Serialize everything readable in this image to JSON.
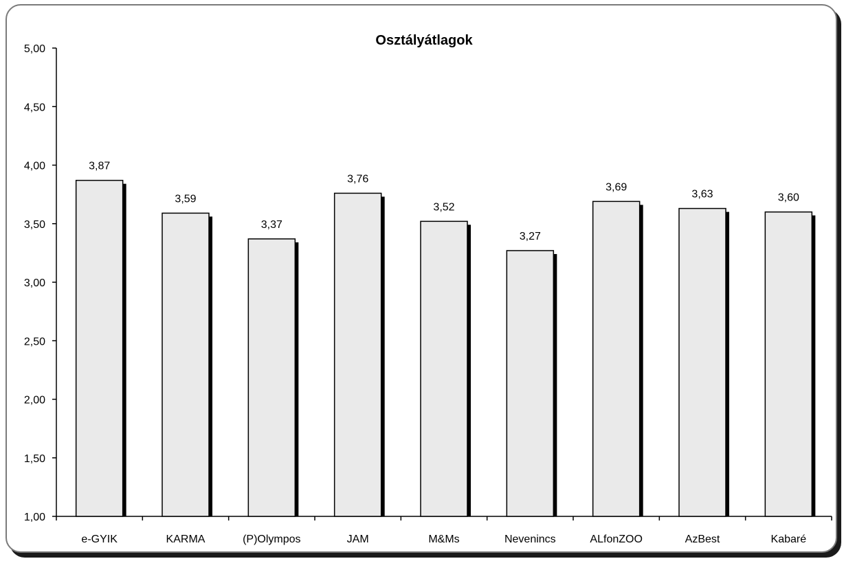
{
  "chart_data": {
    "type": "bar",
    "title": "Osztályátlagok",
    "categories": [
      "e-GYIK",
      "KARMA",
      "(P)Olympos",
      "JAM",
      "M&Ms",
      "Nevenincs",
      "ALfonZOO",
      "AzBest",
      "Kabaré"
    ],
    "values": [
      3.87,
      3.59,
      3.37,
      3.76,
      3.52,
      3.27,
      3.69,
      3.63,
      3.6
    ],
    "value_labels": [
      "3,87",
      "3,59",
      "3,37",
      "3,76",
      "3,52",
      "3,27",
      "3,69",
      "3,63",
      "3,60"
    ],
    "ylim": [
      1.0,
      5.0
    ],
    "yticks": [
      "1,00",
      "1,50",
      "2,00",
      "2,50",
      "3,00",
      "3,50",
      "4,00",
      "4,50",
      "5,00"
    ],
    "ytick_values": [
      1.0,
      1.5,
      2.0,
      2.5,
      3.0,
      3.5,
      4.0,
      4.5,
      5.0
    ],
    "grid": false,
    "legend": "none",
    "colors": {
      "bar_fill": "#eaeaea",
      "bar_stroke": "#000000",
      "bar_shadow": "#000000",
      "axis": "#000000"
    }
  }
}
